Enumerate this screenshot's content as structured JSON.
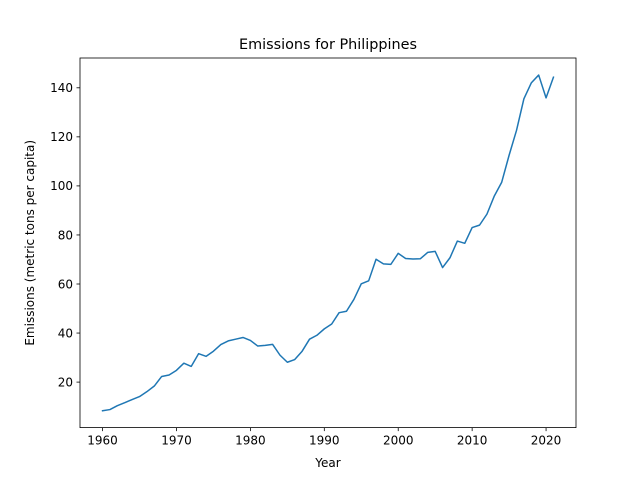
{
  "chart_data": {
    "type": "line",
    "title": "Emissions for Philippines",
    "xlabel": "Year",
    "ylabel": "Emissions (metric tons per capita)",
    "xlim": [
      1956.95,
      2024.05
    ],
    "ylim": [
      1.45,
      152.15
    ],
    "xticks": [
      1960,
      1970,
      1980,
      1990,
      2000,
      2010,
      2020
    ],
    "yticks": [
      20,
      40,
      60,
      80,
      100,
      120,
      140
    ],
    "grid": false,
    "legend": "none",
    "series": [
      {
        "color": "#1f77b4",
        "x": [
          1960,
          1961,
          1962,
          1963,
          1964,
          1965,
          1966,
          1967,
          1968,
          1969,
          1970,
          1971,
          1972,
          1973,
          1974,
          1975,
          1976,
          1977,
          1978,
          1979,
          1980,
          1981,
          1982,
          1983,
          1984,
          1985,
          1986,
          1987,
          1988,
          1989,
          1990,
          1991,
          1992,
          1993,
          1994,
          1995,
          1996,
          1997,
          1998,
          1999,
          2000,
          2001,
          2002,
          2003,
          2004,
          2005,
          2006,
          2007,
          2008,
          2009,
          2010,
          2011,
          2012,
          2013,
          2014,
          2015,
          2016,
          2017,
          2018,
          2019,
          2020,
          2021
        ],
        "y": [
          8.3,
          8.8,
          10.4,
          11.6,
          12.9,
          14.1,
          16.1,
          18.4,
          22.3,
          22.9,
          24.8,
          27.7,
          26.4,
          31.6,
          30.5,
          32.6,
          35.3,
          36.8,
          37.5,
          38.2,
          37.0,
          34.7,
          35.0,
          35.4,
          31.0,
          28.1,
          29.2,
          32.6,
          37.5,
          39.1,
          41.7,
          43.7,
          48.3,
          48.9,
          53.7,
          60.1,
          61.3,
          70.1,
          68.2,
          68.0,
          72.5,
          70.4,
          70.2,
          70.3,
          72.9,
          73.3,
          66.7,
          70.7,
          77.5,
          76.6,
          83.0,
          84.0,
          88.5,
          95.9,
          101.5,
          112.5,
          122.6,
          135.5,
          142.0,
          145.2,
          135.9,
          144.3
        ]
      }
    ]
  }
}
